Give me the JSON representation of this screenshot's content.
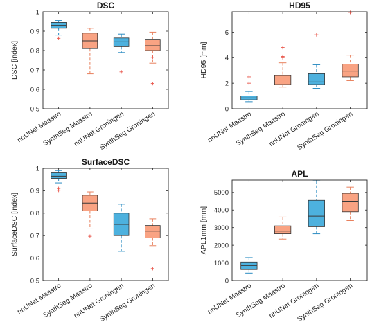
{
  "colors": {
    "blue": "#4DB1DE",
    "orange": "#F9A383",
    "blue_dark": "#2B8CC2",
    "orange_dark": "#E8805D",
    "outlier": "#E8554A"
  },
  "chart_data": [
    {
      "type": "box",
      "title": "DSC",
      "ylabel": "DSC [index]",
      "ylim": [
        0.5,
        1
      ],
      "yticks": [
        0.5,
        0.6,
        0.7,
        0.8,
        0.9,
        1
      ],
      "ytick_labels": [
        "0.5",
        "0.6",
        "0.7",
        "0.8",
        "0.9",
        "1"
      ],
      "categories": [
        "nnUNet Maastro",
        "SynthSeg Maastro",
        "nnUNet Groningen",
        "SynthSeg Groningen"
      ],
      "boxes": [
        {
          "min": 0.88,
          "q1": 0.915,
          "median": 0.93,
          "q3": 0.945,
          "max": 0.955,
          "outliers": [
            0.863
          ],
          "color": "blue"
        },
        {
          "min": 0.68,
          "q1": 0.81,
          "median": 0.85,
          "q3": 0.89,
          "max": 0.915,
          "outliers": [],
          "color": "orange"
        },
        {
          "min": 0.79,
          "q1": 0.82,
          "median": 0.845,
          "q3": 0.865,
          "max": 0.885,
          "outliers": [
            0.69
          ],
          "color": "blue"
        },
        {
          "min": 0.735,
          "q1": 0.8,
          "median": 0.825,
          "q3": 0.855,
          "max": 0.895,
          "outliers": [
            0.765,
            0.63
          ],
          "color": "orange"
        }
      ]
    },
    {
      "type": "box",
      "title": "HD95",
      "ylabel": "HD95 [mm]",
      "ylim": [
        0,
        7.6
      ],
      "yticks": [
        0,
        2,
        4,
        6
      ],
      "ytick_labels": [
        "0",
        "2",
        "4",
        "6"
      ],
      "categories": [
        "nnUNet Maastro",
        "SynthSeg Maastro",
        "nnUNet Groningen",
        "SynthSeg Groningen"
      ],
      "boxes": [
        {
          "min": 0.55,
          "q1": 0.7,
          "median": 0.85,
          "q3": 1.0,
          "max": 1.35,
          "outliers": [
            2.0,
            2.5
          ],
          "color": "blue"
        },
        {
          "min": 1.7,
          "q1": 1.9,
          "median": 2.25,
          "q3": 2.6,
          "max": 3.6,
          "outliers": [
            4.0,
            4.1,
            4.8
          ],
          "color": "orange"
        },
        {
          "min": 1.6,
          "q1": 1.9,
          "median": 2.1,
          "q3": 2.75,
          "max": 3.45,
          "outliers": [
            5.8
          ],
          "color": "blue"
        },
        {
          "min": 2.2,
          "q1": 2.5,
          "median": 2.95,
          "q3": 3.5,
          "max": 4.2,
          "outliers": [
            7.55
          ],
          "color": "orange"
        }
      ]
    },
    {
      "type": "box",
      "title": "SurfaceDSC",
      "ylabel": "SurfaceDSC [index]",
      "ylim": [
        0.5,
        1
      ],
      "yticks": [
        0.5,
        0.6,
        0.7,
        0.8,
        0.9,
        1
      ],
      "ytick_labels": [
        "0.5",
        "0.6",
        "0.7",
        "0.8",
        "0.9",
        "1"
      ],
      "categories": [
        "nnUNet Maastro",
        "SynthSeg Maastro",
        "nnUNet Groningen",
        "SynthSeg Groningen"
      ],
      "boxes": [
        {
          "min": 0.935,
          "q1": 0.955,
          "median": 0.965,
          "q3": 0.98,
          "max": 0.99,
          "outliers": [
            0.91,
            0.902
          ],
          "color": "blue"
        },
        {
          "min": 0.73,
          "q1": 0.81,
          "median": 0.845,
          "q3": 0.88,
          "max": 0.895,
          "outliers": [
            0.697
          ],
          "color": "orange"
        },
        {
          "min": 0.63,
          "q1": 0.7,
          "median": 0.75,
          "q3": 0.8,
          "max": 0.84,
          "outliers": [],
          "color": "blue"
        },
        {
          "min": 0.655,
          "q1": 0.69,
          "median": 0.72,
          "q3": 0.745,
          "max": 0.775,
          "outliers": [
            0.553
          ],
          "color": "orange"
        }
      ]
    },
    {
      "type": "box",
      "title": "APL",
      "ylabel": "APL1mm [mm]",
      "ylim": [
        0,
        5700
      ],
      "yticks": [
        0,
        1000,
        2000,
        3000,
        4000,
        5000
      ],
      "ytick_labels": [
        "0",
        "1000",
        "2000",
        "3000",
        "4000",
        "5000"
      ],
      "categories": [
        "nnUNet Maastro",
        "SynthSeg Maastro",
        "nnUNet Groningen",
        "SynthSeg Groningen"
      ],
      "boxes": [
        {
          "min": 420,
          "q1": 620,
          "median": 850,
          "q3": 1050,
          "max": 1300,
          "outliers": [],
          "color": "blue"
        },
        {
          "min": 2350,
          "q1": 2650,
          "median": 2800,
          "q3": 3100,
          "max": 3600,
          "outliers": [],
          "color": "orange"
        },
        {
          "min": 2650,
          "q1": 3050,
          "median": 3650,
          "q3": 4550,
          "max": 5650,
          "outliers": [],
          "color": "blue"
        },
        {
          "min": 3400,
          "q1": 3900,
          "median": 4500,
          "q3": 4950,
          "max": 5300,
          "outliers": [],
          "color": "orange"
        }
      ]
    }
  ]
}
